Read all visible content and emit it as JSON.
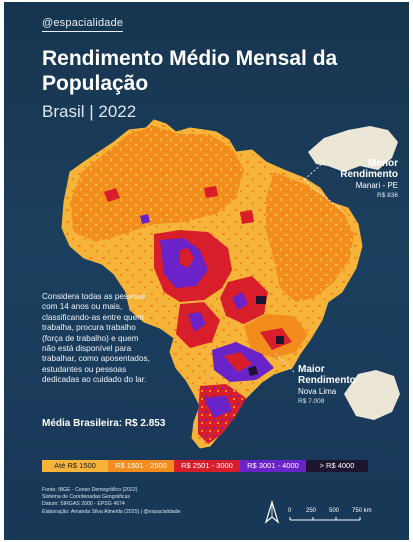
{
  "header": {
    "handle": "@espacialidade",
    "title": "Rendimento Médio Mensal da População",
    "subtitle": "Brasil | 2022"
  },
  "note": "Considera todas as pessoas com 14 anos ou mais, classificando-as entre quem trabalha, procura trabalho (força de trabalho) e quem não está disponível para trabalhar, como aposentados, estudantes ou pessoas dedicadas ao cuidado do lar.",
  "media": "Média Brasileira: R$ 2.853",
  "min_callout": {
    "title": "Menor Rendimento",
    "place": "Manari - PE",
    "value": "R$ 836"
  },
  "max_callout": {
    "title": "Maior Rendimento",
    "place": "Nova Lima",
    "value": "R$ 7.009"
  },
  "legend": [
    {
      "label": "Até R$ 1500",
      "color": "#f7b43a",
      "text": "#1a1a1a"
    },
    {
      "label": "R$ 1501 - 2500",
      "color": "#f28c1c",
      "text": "#ffffff"
    },
    {
      "label": "R$ 2501 - 3000",
      "color": "#d81e2a",
      "text": "#ffffff"
    },
    {
      "label": "R$ 3001 - 4000",
      "color": "#6a22c9",
      "text": "#ffffff"
    },
    {
      "label": "> R$ 4000",
      "color": "#1d1530",
      "text": "#ffffff"
    }
  ],
  "sources": [
    "Fonte: IBGE - Censo Demográfico (2022)",
    "Sistema de Coordenadas Geográficas",
    "Datum: SIRGAS 2000 - EPSG 4674",
    "Elaboração: Amanda Silva Almeida (2025) | @espacialidade"
  ],
  "scale": {
    "ticks": [
      "0",
      "250",
      "500",
      "750 km"
    ]
  }
}
